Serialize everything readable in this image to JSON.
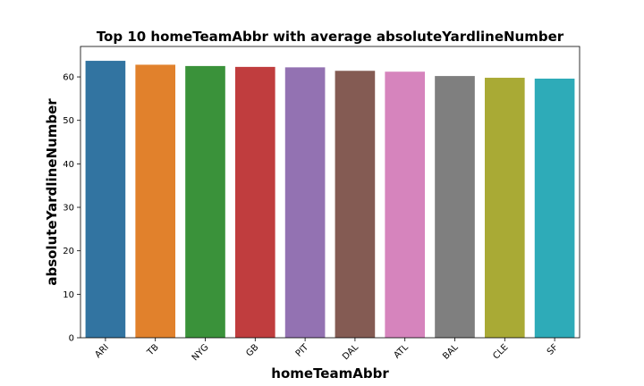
{
  "chart_data": {
    "type": "bar",
    "title": "Top 10 homeTeamAbbr with average absoluteYardlineNumber",
    "xlabel": "homeTeamAbbr",
    "ylabel": "absoluteYardlineNumber",
    "categories": [
      "ARI",
      "TB",
      "NYG",
      "GB",
      "PIT",
      "DAL",
      "ATL",
      "BAL",
      "CLE",
      "SF"
    ],
    "values": [
      63.7,
      62.8,
      62.5,
      62.3,
      62.2,
      61.4,
      61.2,
      60.2,
      59.8,
      59.6
    ],
    "colors": [
      "#3274a1",
      "#e1812c",
      "#3a923a",
      "#c03d3e",
      "#9372b2",
      "#845b53",
      "#d684bd",
      "#7f7f7f",
      "#a9aa35",
      "#2eabb8"
    ],
    "ylim": [
      0,
      67
    ],
    "yticks": [
      0,
      10,
      20,
      30,
      40,
      50,
      60
    ],
    "grid": false,
    "legend": "none"
  }
}
